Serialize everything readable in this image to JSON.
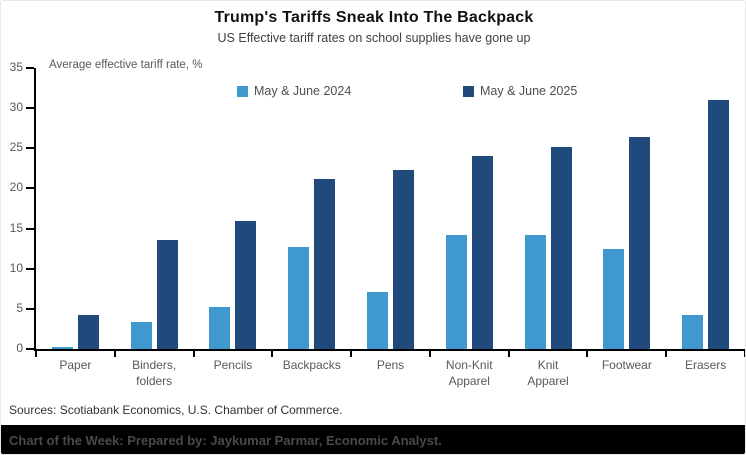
{
  "header": {
    "title": "Trump's Tariffs Sneak Into The Backpack",
    "subtitle": "US Effective tariff rates on school supplies have gone up"
  },
  "chart_data": {
    "type": "bar",
    "title": "Trump's Tariffs Sneak Into The Backpack",
    "subtitle": "US Effective tariff rates on school supplies have gone up",
    "axis_caption": "Average effective tariff rate, %",
    "categories": [
      "Paper",
      "Binders,\nfolders",
      "Pencils",
      "Backpacks",
      "Pens",
      "Non-Knit\nApparel",
      "Knit\nApparel",
      "Footwear",
      "Erasers"
    ],
    "series": [
      {
        "name": "May & June 2024",
        "color": "#3F99CE",
        "values": [
          0.2,
          3.4,
          5.2,
          12.7,
          7.1,
          14.2,
          14.2,
          12.4,
          4.2
        ]
      },
      {
        "name": "May & June 2025",
        "color": "#1F4A7B",
        "values": [
          4.2,
          13.6,
          16.0,
          21.2,
          22.3,
          24.0,
          25.1,
          26.4,
          31.0
        ]
      }
    ],
    "ylim": [
      0,
      35
    ],
    "ytick_step": 5,
    "grid": false,
    "legend_position": "top",
    "xlabel": "",
    "ylabel": "Average effective tariff rate, %"
  },
  "footer": {
    "sources": "Sources: Scotiabank Economics, U.S. Chamber of Commerce.",
    "banner": "Chart of the Week: Prepared by: Jaykumar Parmar, Economic Analyst."
  },
  "colors": {
    "series_2024": "#3F99CE",
    "series_2025": "#1F4A7B",
    "axis": "#000000",
    "tick_label": "#595959",
    "footer_bar_bg": "#000000",
    "footer_text": "#4A4A4A"
  }
}
